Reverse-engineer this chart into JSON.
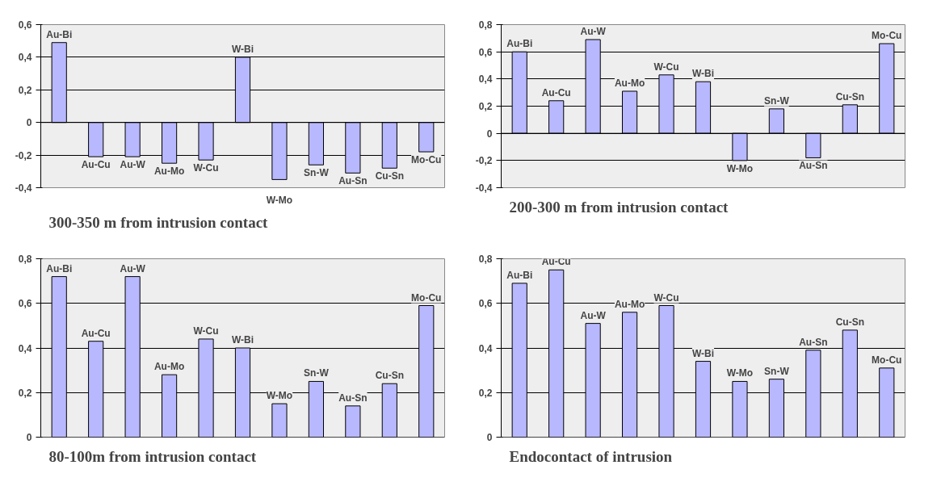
{
  "chart_data": [
    {
      "type": "bar",
      "title": "300-350 m from intrusion contact",
      "categories": [
        "Au-Bi",
        "Au-Cu",
        "Au-W",
        "Au-Mo",
        "W-Cu",
        "W-Bi",
        "W-Mo",
        "Sn-W",
        "Au-Sn",
        "Cu-Sn",
        "Mo-Cu"
      ],
      "values": [
        0.49,
        -0.21,
        -0.21,
        -0.25,
        -0.23,
        0.4,
        -0.35,
        -0.26,
        -0.31,
        -0.28,
        -0.18
      ],
      "color": "#b8b8ff",
      "ylim": [
        -0.4,
        0.6
      ],
      "yticks": [
        {
          "value": -0.4,
          "label": "-0,4"
        },
        {
          "value": -0.2,
          "label": "-0,2"
        },
        0,
        {
          "value": 0.2,
          "label": "0,2"
        },
        {
          "value": 0.4,
          "label": "0,4"
        },
        {
          "value": 0.6,
          "label": "0,6"
        }
      ],
      "grid": "y",
      "tick_labels": "y"
    },
    {
      "type": "bar",
      "title": "200-300 m from intrusion contact",
      "categories": [
        "Au-Bi",
        "Au-Cu",
        "Au-W",
        "Au-Mo",
        "W-Cu",
        "W-Bi",
        "W-Mo",
        "Sn-W",
        "Au-Sn",
        "Cu-Sn",
        "Mo-Cu"
      ],
      "values": [
        0.6,
        0.24,
        0.69,
        0.31,
        0.43,
        0.38,
        -0.2,
        0.18,
        -0.18,
        0.21,
        0.66
      ],
      "color": "#b8b8ff",
      "ylim": [
        -0.4,
        0.8
      ],
      "yticks": [
        {
          "value": -0.4,
          "label": "-0,4"
        },
        {
          "value": -0.2,
          "label": "-0,2"
        },
        0,
        {
          "value": 0.2,
          "label": "0,2"
        },
        {
          "value": 0.4,
          "label": "0,4"
        },
        {
          "value": 0.6,
          "label": "0,6"
        },
        {
          "value": 0.8,
          "label": "0,8"
        }
      ],
      "grid": "y",
      "tick_labels": "y"
    },
    {
      "type": "bar",
      "title": "80-100m from intrusion contact",
      "categories": [
        "Au-Bi",
        "Au-Cu",
        "Au-W",
        "Au-Mo",
        "W-Cu",
        "W-Bi",
        "W-Mo",
        "Sn-W",
        "Au-Sn",
        "Cu-Sn",
        "Mo-Cu"
      ],
      "values": [
        0.72,
        0.43,
        0.72,
        0.28,
        0.44,
        0.4,
        0.15,
        0.25,
        0.14,
        0.24,
        0.59
      ],
      "color": "#b8b8ff",
      "ylim": [
        0,
        0.8
      ],
      "yticks": [
        0,
        {
          "value": 0.2,
          "label": "0,2"
        },
        {
          "value": 0.4,
          "label": "0,4"
        },
        {
          "value": 0.6,
          "label": "0,6"
        },
        {
          "value": 0.8,
          "label": "0,8"
        }
      ],
      "grid": "y",
      "tick_labels": "y"
    },
    {
      "type": "bar",
      "title": "Endocontact of intrusion",
      "categories": [
        "Au-Bi",
        "Au-Cu",
        "Au-W",
        "Au-Mo",
        "W-Cu",
        "W-Bi",
        "W-Mo",
        "Sn-W",
        "Au-Sn",
        "Cu-Sn",
        "Mo-Cu"
      ],
      "values": [
        0.69,
        0.75,
        0.51,
        0.56,
        0.59,
        0.34,
        0.25,
        0.26,
        0.39,
        0.48,
        0.31
      ],
      "color": "#b8b8ff",
      "ylim": [
        0,
        0.8
      ],
      "yticks": [
        0,
        {
          "value": 0.2,
          "label": "0,2"
        },
        {
          "value": 0.4,
          "label": "0,4"
        },
        {
          "value": 0.6,
          "label": "0,6"
        },
        {
          "value": 0.8,
          "label": "0,8"
        }
      ],
      "grid": "y",
      "tick_labels": "y"
    }
  ]
}
